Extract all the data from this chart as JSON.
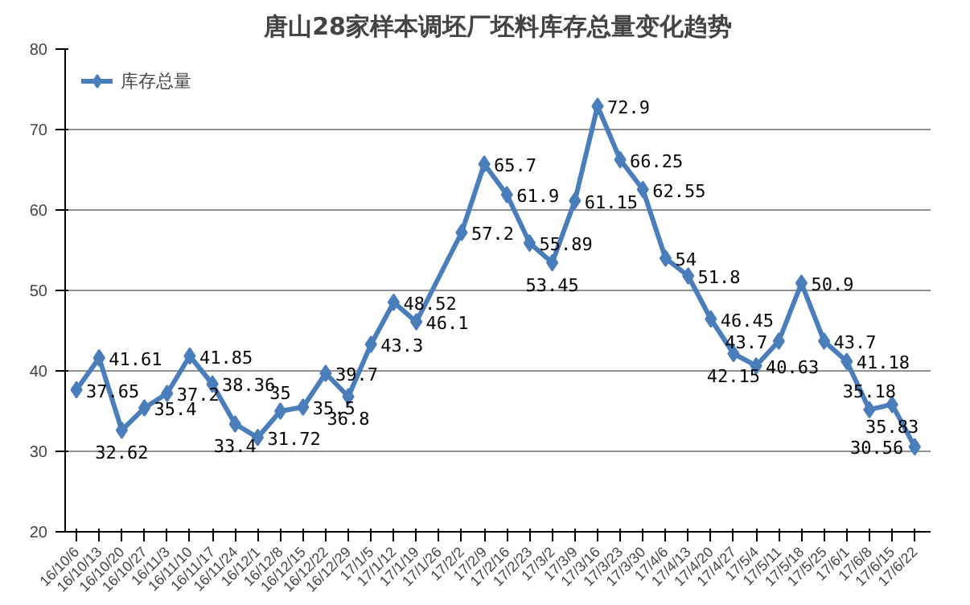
{
  "chart_data": {
    "type": "line",
    "title": "唐山28家样本调坯厂坯料库存总量变化趋势",
    "categories": [
      "16/10/6",
      "16/10/13",
      "16/10/20",
      "16/10/27",
      "16/11/3",
      "16/11/10",
      "16/11/17",
      "16/11/24",
      "16/12/1",
      "16/12/8",
      "16/12/15",
      "16/12/22",
      "16/12/29",
      "17/1/5",
      "17/1/12",
      "17/1/19",
      "17/1/26",
      "17/2/2",
      "17/2/9",
      "17/2/16",
      "17/2/23",
      "17/3/2",
      "17/3/9",
      "17/3/16",
      "17/3/23",
      "17/3/30",
      "17/4/6",
      "17/4/13",
      "17/4/20",
      "17/4/27",
      "17/5/4",
      "17/5/11",
      "17/5/18",
      "17/5/25",
      "17/6/1",
      "17/6/8",
      "17/6/15",
      "17/6/22"
    ],
    "series": [
      {
        "name": "库存总量",
        "color": "#4a7ebb",
        "values": [
          37.65,
          41.61,
          32.62,
          35.4,
          37.2,
          41.85,
          38.36,
          33.4,
          31.72,
          35,
          35.5,
          39.7,
          36.8,
          43.3,
          48.52,
          46.1,
          null,
          57.2,
          65.7,
          61.9,
          55.89,
          53.45,
          61.15,
          72.9,
          66.25,
          62.55,
          54,
          51.8,
          46.45,
          42.15,
          40.63,
          43.7,
          50.9,
          43.7,
          41.18,
          35.18,
          35.83,
          30.56
        ]
      }
    ],
    "ylim": [
      20,
      80
    ],
    "yticks": [
      20,
      30,
      40,
      50,
      60,
      70,
      80
    ],
    "grid": "y",
    "legend": "top left",
    "marker": "diamond",
    "line_style": "solid",
    "data_labels": true
  }
}
